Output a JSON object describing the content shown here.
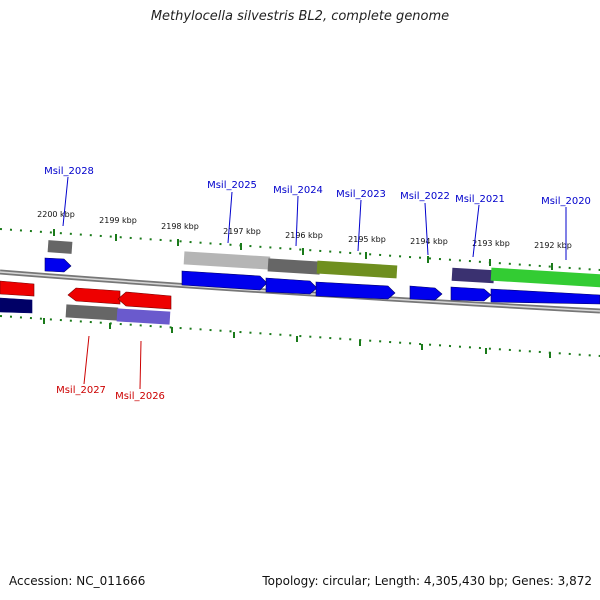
{
  "title": "Methylocella silvestris BL2, complete genome",
  "footer": {
    "accession": "Accession: NC_011666",
    "summary": "Topology: circular; Length: 4,305,430 bp; Genes: 3,872"
  },
  "colors": {
    "forward_gene": "#0000ee",
    "reverse_gene": "#ee0000",
    "label_forward": "#0000cc",
    "label_reverse": "#cc0000",
    "tick": "#1a7a1a",
    "backbone": "#888888"
  },
  "scale_labels": [
    "2200 kbp",
    "2199 kbp",
    "2198 kbp",
    "2197 kbp",
    "2196 kbp",
    "2195 kbp",
    "2194 kbp",
    "2193 kbp",
    "2192 kbp"
  ],
  "gene_labels": {
    "forward": [
      "Msil_2028",
      "Msil_2025",
      "Msil_2024",
      "Msil_2023",
      "Msil_2022",
      "Msil_2021",
      "Msil_2020"
    ],
    "reverse": [
      "Msil_2027",
      "Msil_2026"
    ]
  }
}
